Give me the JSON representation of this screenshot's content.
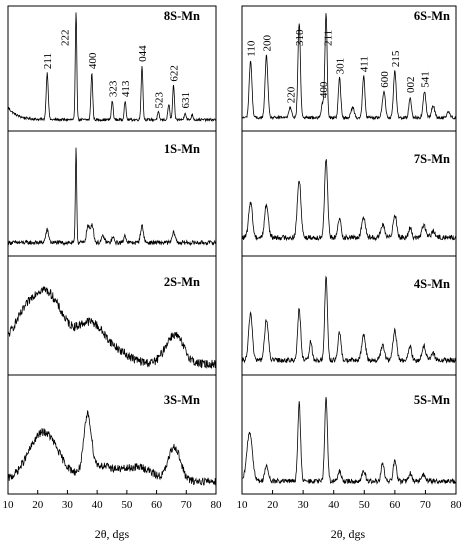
{
  "figure": {
    "left_xlabel": "2θ, dgs",
    "right_xlabel": "2θ, dgs"
  },
  "chart_data": [
    {
      "type": "line",
      "title": "8S-Mn",
      "column": "left",
      "row": 0,
      "xlim": [
        10,
        80
      ],
      "xticks": [],
      "baseline": 0.08,
      "noise": 0.012,
      "amorphous": [],
      "curve": {
        "start": 0.12,
        "decay": 3
      },
      "peaks": [
        {
          "x": 23.2,
          "h": 0.45,
          "w": 0.35
        },
        {
          "x": 32.9,
          "h": 1.05,
          "w": 0.25
        },
        {
          "x": 38.2,
          "h": 0.45,
          "w": 0.3
        },
        {
          "x": 45.1,
          "h": 0.18,
          "w": 0.3
        },
        {
          "x": 49.4,
          "h": 0.18,
          "w": 0.3
        },
        {
          "x": 55.1,
          "h": 0.52,
          "w": 0.3
        },
        {
          "x": 60.6,
          "h": 0.07,
          "w": 0.3
        },
        {
          "x": 64.1,
          "h": 0.15,
          "w": 0.3
        },
        {
          "x": 65.7,
          "h": 0.33,
          "w": 0.3
        },
        {
          "x": 69.6,
          "h": 0.07,
          "w": 0.3
        },
        {
          "x": 72.0,
          "h": 0.05,
          "w": 0.3
        }
      ],
      "peak_labels": [
        {
          "text": "211",
          "x": 23.2
        },
        {
          "text": "222",
          "x": 29.0
        },
        {
          "text": "400",
          "x": 38.2
        },
        {
          "text": "323",
          "x": 45.1
        },
        {
          "text": "413",
          "x": 49.4
        },
        {
          "text": "044",
          "x": 55.1
        },
        {
          "text": "523",
          "x": 60.6
        },
        {
          "text": "622",
          "x": 65.7
        },
        {
          "text": "631",
          "x": 69.6
        }
      ]
    },
    {
      "type": "line",
      "title": "1S-Mn",
      "column": "left",
      "row": 1,
      "xlim": [
        10,
        80
      ],
      "xticks": [],
      "baseline": 0.1,
      "noise": 0.02,
      "amorphous": [],
      "peaks": [
        {
          "x": 23.2,
          "h": 0.12,
          "w": 0.5
        },
        {
          "x": 32.9,
          "h": 0.92,
          "w": 0.22
        },
        {
          "x": 36.9,
          "h": 0.16,
          "w": 0.5
        },
        {
          "x": 38.3,
          "h": 0.18,
          "w": 0.5
        },
        {
          "x": 42.0,
          "h": 0.06,
          "w": 0.5
        },
        {
          "x": 45.3,
          "h": 0.05,
          "w": 0.4
        },
        {
          "x": 49.4,
          "h": 0.07,
          "w": 0.4
        },
        {
          "x": 55.1,
          "h": 0.16,
          "w": 0.5
        },
        {
          "x": 65.8,
          "h": 0.1,
          "w": 0.5
        }
      ],
      "peak_labels": []
    },
    {
      "type": "line",
      "title": "2S-Mn",
      "column": "left",
      "row": 2,
      "xlim": [
        10,
        80
      ],
      "xticks": [],
      "baseline": 0.08,
      "noise": 0.045,
      "peaks": [],
      "peak_labels": [],
      "amorphous": [
        {
          "x": 18,
          "h": 0.55,
          "w": 7
        },
        {
          "x": 25,
          "h": 0.35,
          "w": 5
        },
        {
          "x": 37.5,
          "h": 0.38,
          "w": 4.5
        },
        {
          "x": 46,
          "h": 0.12,
          "w": 5
        },
        {
          "x": 66,
          "h": 0.3,
          "w": 3
        }
      ]
    },
    {
      "type": "line",
      "title": "3S-Mn",
      "column": "left",
      "row": 3,
      "xlim": [
        10,
        80
      ],
      "xticks": [
        10,
        20,
        30,
        40,
        50,
        60,
        70,
        80
      ],
      "baseline": 0.1,
      "noise": 0.04,
      "peaks": [],
      "peak_labels": [],
      "amorphous": [
        {
          "x": 22,
          "h": 0.5,
          "w": 5
        },
        {
          "x": 36.8,
          "h": 0.55,
          "w": 1.2
        },
        {
          "x": 38.5,
          "h": 0.12,
          "w": 4
        },
        {
          "x": 46,
          "h": 0.1,
          "w": 5
        },
        {
          "x": 55,
          "h": 0.12,
          "w": 4
        },
        {
          "x": 66,
          "h": 0.35,
          "w": 2
        }
      ]
    },
    {
      "type": "line",
      "title": "6S-Mn",
      "column": "right",
      "row": 0,
      "xlim": [
        10,
        80
      ],
      "xticks": [],
      "baseline": 0.1,
      "noise": 0.015,
      "amorphous": [],
      "peaks": [
        {
          "x": 12.8,
          "h": 0.55,
          "w": 0.45
        },
        {
          "x": 18.0,
          "h": 0.6,
          "w": 0.45
        },
        {
          "x": 25.8,
          "h": 0.1,
          "w": 0.5
        },
        {
          "x": 28.7,
          "h": 0.92,
          "w": 0.4
        },
        {
          "x": 36.5,
          "h": 0.15,
          "w": 0.5
        },
        {
          "x": 37.5,
          "h": 1.0,
          "w": 0.35
        },
        {
          "x": 41.9,
          "h": 0.38,
          "w": 0.4
        },
        {
          "x": 46.2,
          "h": 0.1,
          "w": 0.5
        },
        {
          "x": 49.8,
          "h": 0.4,
          "w": 0.4
        },
        {
          "x": 56.4,
          "h": 0.25,
          "w": 0.5
        },
        {
          "x": 60.0,
          "h": 0.45,
          "w": 0.45
        },
        {
          "x": 65.0,
          "h": 0.2,
          "w": 0.4
        },
        {
          "x": 69.7,
          "h": 0.25,
          "w": 0.45
        },
        {
          "x": 72.5,
          "h": 0.12,
          "w": 0.5
        },
        {
          "x": 77.5,
          "h": 0.06,
          "w": 0.5
        }
      ],
      "peak_labels": [
        {
          "text": "110",
          "x": 12.8
        },
        {
          "text": "200",
          "x": 18.0
        },
        {
          "text": "220",
          "x": 25.8
        },
        {
          "text": "310",
          "x": 28.7
        },
        {
          "text": "400",
          "x": 36.5
        },
        {
          "text": "211",
          "x": 37.9
        },
        {
          "text": "301",
          "x": 41.9
        },
        {
          "text": "411",
          "x": 49.8
        },
        {
          "text": "600",
          "x": 56.4
        },
        {
          "text": "215",
          "x": 60.0
        },
        {
          "text": "002",
          "x": 65.0
        },
        {
          "text": "541",
          "x": 69.7
        }
      ]
    },
    {
      "type": "line",
      "title": "7S-Mn",
      "column": "right",
      "row": 1,
      "xlim": [
        10,
        80
      ],
      "xticks": [],
      "baseline": 0.15,
      "noise": 0.025,
      "amorphous": [],
      "peaks": [
        {
          "x": 12.8,
          "h": 0.35,
          "w": 0.6
        },
        {
          "x": 18.0,
          "h": 0.32,
          "w": 0.6
        },
        {
          "x": 28.7,
          "h": 0.55,
          "w": 0.6
        },
        {
          "x": 37.5,
          "h": 0.75,
          "w": 0.5
        },
        {
          "x": 41.9,
          "h": 0.18,
          "w": 0.5
        },
        {
          "x": 49.8,
          "h": 0.2,
          "w": 0.6
        },
        {
          "x": 56.0,
          "h": 0.12,
          "w": 0.6
        },
        {
          "x": 60.0,
          "h": 0.22,
          "w": 0.6
        },
        {
          "x": 65.0,
          "h": 0.09,
          "w": 0.5
        },
        {
          "x": 69.5,
          "h": 0.12,
          "w": 0.6
        },
        {
          "x": 72.5,
          "h": 0.06,
          "w": 0.6
        }
      ],
      "peak_labels": []
    },
    {
      "type": "line",
      "title": "4S-Mn",
      "column": "right",
      "row": 2,
      "xlim": [
        10,
        80
      ],
      "xticks": [],
      "baseline": 0.12,
      "noise": 0.025,
      "amorphous": [],
      "peaks": [
        {
          "x": 12.8,
          "h": 0.48,
          "w": 0.6
        },
        {
          "x": 18.0,
          "h": 0.42,
          "w": 0.6
        },
        {
          "x": 28.7,
          "h": 0.52,
          "w": 0.5
        },
        {
          "x": 32.5,
          "h": 0.2,
          "w": 0.4
        },
        {
          "x": 37.5,
          "h": 0.85,
          "w": 0.45
        },
        {
          "x": 41.9,
          "h": 0.28,
          "w": 0.5
        },
        {
          "x": 49.8,
          "h": 0.26,
          "w": 0.6
        },
        {
          "x": 56.0,
          "h": 0.15,
          "w": 0.6
        },
        {
          "x": 60.0,
          "h": 0.3,
          "w": 0.6
        },
        {
          "x": 65.0,
          "h": 0.14,
          "w": 0.5
        },
        {
          "x": 69.5,
          "h": 0.15,
          "w": 0.6
        },
        {
          "x": 72.5,
          "h": 0.07,
          "w": 0.6
        }
      ],
      "peak_labels": []
    },
    {
      "type": "line",
      "title": "5S-Mn",
      "column": "right",
      "row": 3,
      "xlim": [
        10,
        80
      ],
      "xticks": [
        10,
        20,
        30,
        40,
        50,
        60,
        70,
        80
      ],
      "baseline": 0.1,
      "noise": 0.025,
      "amorphous": [],
      "peaks": [
        {
          "x": 12.5,
          "h": 0.5,
          "w": 0.9
        },
        {
          "x": 18.0,
          "h": 0.15,
          "w": 0.6
        },
        {
          "x": 28.7,
          "h": 0.8,
          "w": 0.45
        },
        {
          "x": 37.5,
          "h": 0.85,
          "w": 0.45
        },
        {
          "x": 41.9,
          "h": 0.1,
          "w": 0.5
        },
        {
          "x": 49.8,
          "h": 0.1,
          "w": 0.6
        },
        {
          "x": 56.0,
          "h": 0.18,
          "w": 0.5
        },
        {
          "x": 60.0,
          "h": 0.22,
          "w": 0.5
        },
        {
          "x": 65.0,
          "h": 0.08,
          "w": 0.5
        },
        {
          "x": 69.5,
          "h": 0.07,
          "w": 0.6
        }
      ],
      "peak_labels": []
    }
  ]
}
